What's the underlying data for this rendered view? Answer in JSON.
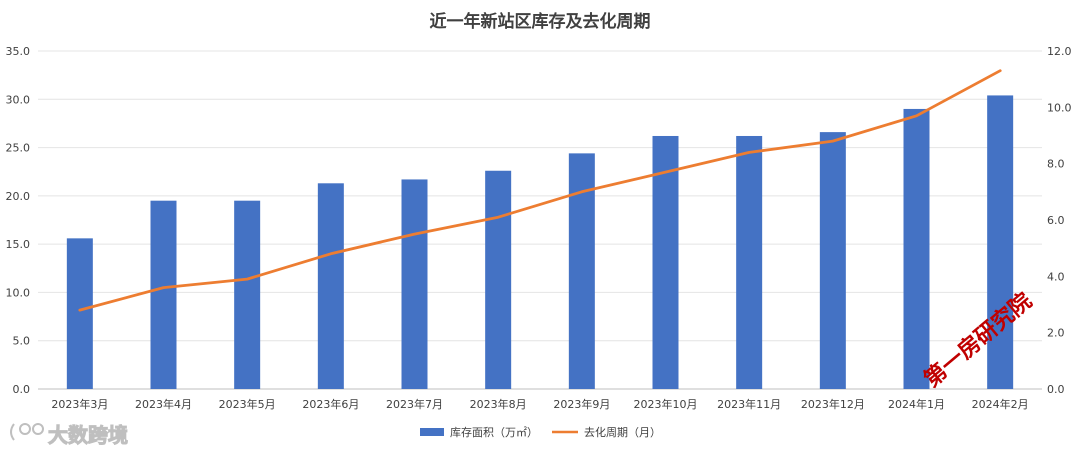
{
  "chart_data": {
    "type": "bar",
    "title": "近一年新站区库存及去化周期",
    "categories": [
      "2023年3月",
      "2023年4月",
      "2023年5月",
      "2023年6月",
      "2023年7月",
      "2023年8月",
      "2023年9月",
      "2023年10月",
      "2023年11月",
      "2023年12月",
      "2024年1月",
      "2024年2月"
    ],
    "series": [
      {
        "name": "库存面积（万㎡）",
        "type": "bar",
        "axis": "left",
        "color": "#4472C4",
        "values": [
          15.6,
          19.5,
          19.5,
          21.3,
          21.7,
          22.6,
          24.4,
          26.2,
          26.2,
          26.6,
          29.0,
          30.4
        ]
      },
      {
        "name": "去化周期（月）",
        "type": "line",
        "axis": "right",
        "color": "#ED7D31",
        "values": [
          2.8,
          3.6,
          3.9,
          4.8,
          5.5,
          6.1,
          7.0,
          7.7,
          8.4,
          8.8,
          9.7,
          11.3
        ]
      }
    ],
    "ylim": [
      0,
      35
    ],
    "yticks": [
      "0.0",
      "5.0",
      "10.0",
      "15.0",
      "20.0",
      "25.0",
      "30.0",
      "35.0"
    ],
    "y2lim": [
      0,
      12
    ],
    "y2ticks": [
      "0.0",
      "2.0",
      "4.0",
      "6.0",
      "8.0",
      "10.0",
      "12.0"
    ],
    "grid": true,
    "legend": "bottom"
  },
  "watermark": "第一房研究院",
  "source_label": "大数跨境"
}
